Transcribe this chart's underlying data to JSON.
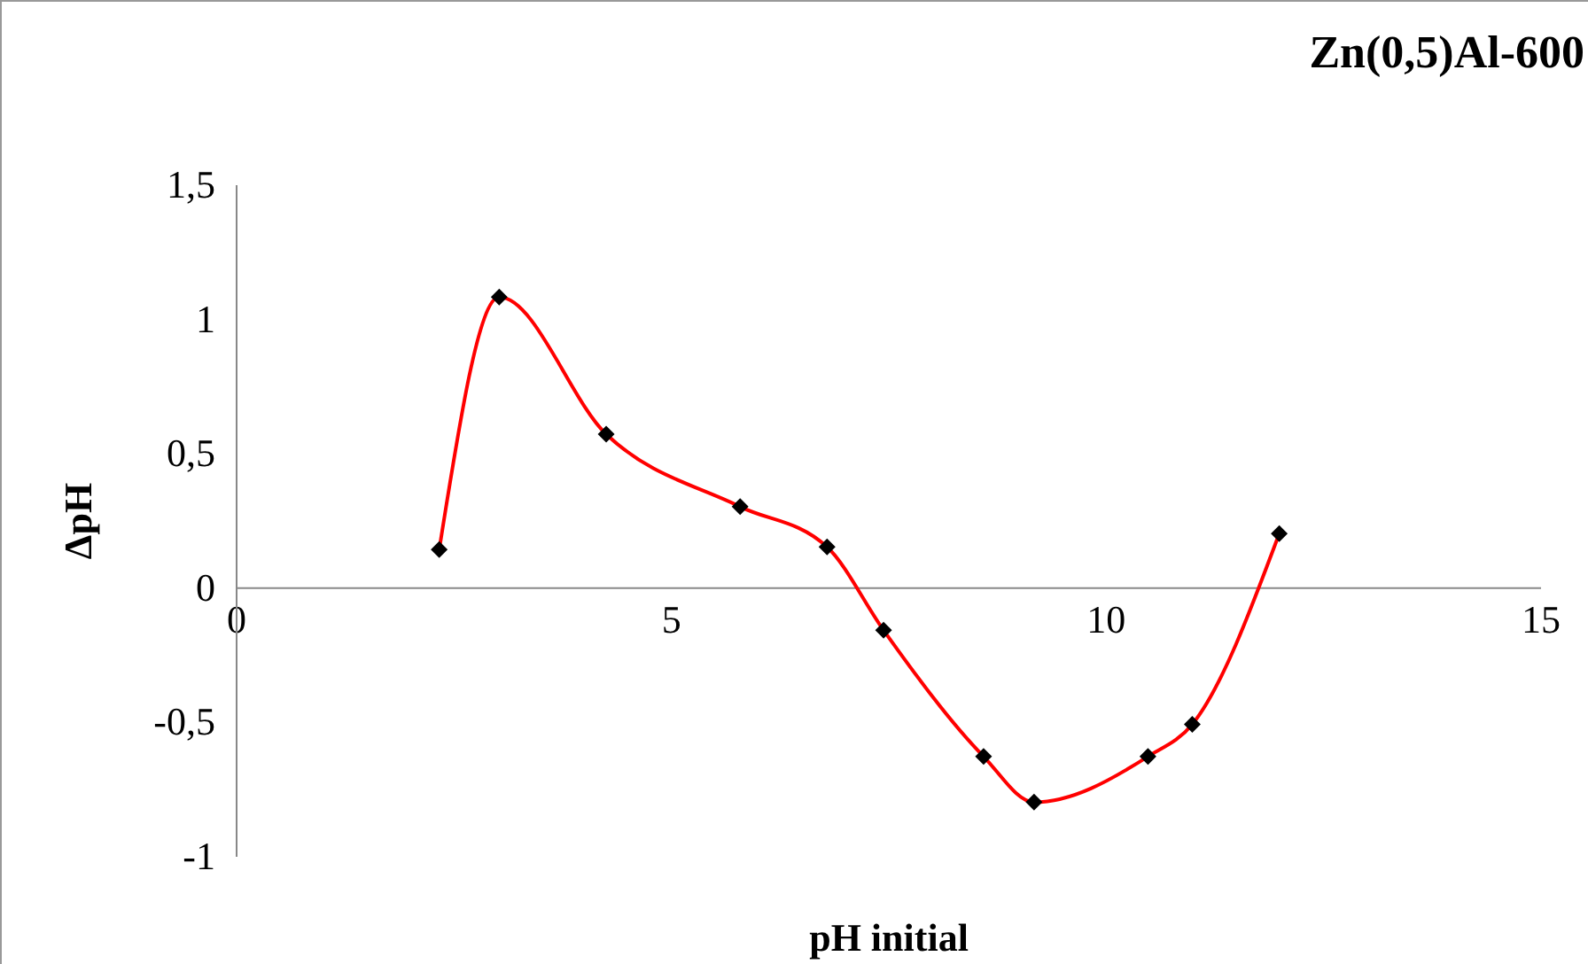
{
  "chart_data": {
    "type": "line",
    "title": "Zn(0,5)Al-600",
    "xlabel": "pH initial",
    "ylabel": "ΔpH",
    "x": [
      2.34,
      3.03,
      4.26,
      5.8,
      6.8,
      7.45,
      8.6,
      9.18,
      10.49,
      11.0,
      12.0
    ],
    "series": [
      {
        "color": "#ff0000",
        "values": [
          0.14,
          1.08,
          0.57,
          0.3,
          0.15,
          -0.16,
          -0.63,
          -0.8,
          -0.63,
          -0.51,
          0.2
        ]
      }
    ],
    "xlim": [
      0,
      15
    ],
    "xticks": [
      0,
      5,
      10,
      15
    ],
    "ylim": [
      -1,
      1.5
    ],
    "yticks": [
      -1,
      {
        "value": -0.5,
        "label": "-0,5"
      },
      0,
      {
        "value": 0.5,
        "label": "0,5"
      },
      1,
      {
        "value": 1.5,
        "label": "1,5"
      }
    ],
    "grid": false,
    "marker": "diamond",
    "line_style": "solid"
  }
}
